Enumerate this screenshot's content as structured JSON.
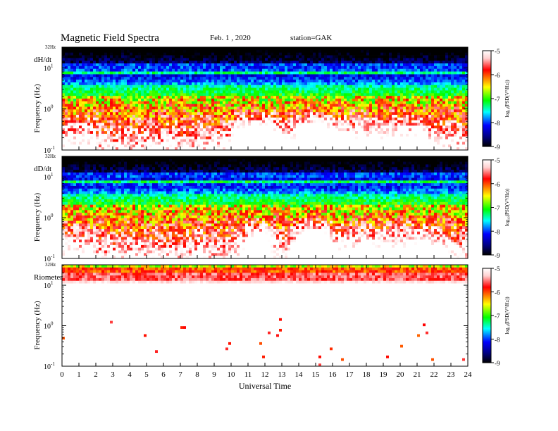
{
  "header": {
    "title": "Magnetic  Field  Spectra",
    "date": "Feb. 1  , 2020",
    "station": "station=GAK"
  },
  "x_axis": {
    "label": "Universal  Time",
    "ticks": [
      "0",
      "1",
      "2",
      "3",
      "4",
      "5",
      "6",
      "7",
      "8",
      "9",
      "10",
      "11",
      "12",
      "13",
      "14",
      "15",
      "16",
      "17",
      "18",
      "19",
      "20",
      "21",
      "22",
      "23",
      "24"
    ]
  },
  "colorbar": {
    "label": "log₁₀(PSD(V²/Hz))",
    "ticks": [
      "-5",
      "-6",
      "-7",
      "-8",
      "-9"
    ],
    "colors": [
      "#ffffff",
      "#ff0000",
      "#ffff00",
      "#00ff00",
      "#00ffff",
      "#0000ff",
      "#00007f",
      "#000000"
    ]
  },
  "panels": [
    {
      "id": "dhdt",
      "name": "dH/dt",
      "ylabel": "Frequency  (Hz)",
      "top_label": "32Hz",
      "yticks": [
        {
          "base": "10",
          "exp": "1"
        },
        {
          "base": "10",
          "exp": "0"
        },
        {
          "base": "10",
          "exp": "-1"
        }
      ]
    },
    {
      "id": "dddt",
      "name": "dD/dt",
      "ylabel": "Frequency  (Hz)",
      "top_label": "32Hz",
      "yticks": [
        {
          "base": "10",
          "exp": "1"
        },
        {
          "base": "10",
          "exp": "0"
        },
        {
          "base": "10",
          "exp": "-1"
        }
      ]
    },
    {
      "id": "riometer",
      "name": "Riometer",
      "ylabel": "Frequency  (Hz)",
      "top_label": "32Hz",
      "yticks": [
        {
          "base": "10",
          "exp": "1"
        },
        {
          "base": "10",
          "exp": "0"
        },
        {
          "base": "10",
          "exp": "-1"
        }
      ]
    }
  ],
  "chart_data": {
    "type": "heatmap",
    "title": "Magnetic  Field  Spectra",
    "xlabel": "Universal  Time",
    "ylabel": "Frequency  (Hz)",
    "x_range_hours": [
      0,
      24
    ],
    "y_range_hz": [
      0.1,
      32
    ],
    "y_scale": "log",
    "color_scale_range": [
      -9,
      -5
    ],
    "colorbar_label": "log₁₀(PSD(V²/Hz))",
    "series": [
      {
        "name": "dH/dt",
        "description": "broadband spectrogram; elevated low-frequency power (log PSD about -5) near 10-12 UT and 14-16 UT, narrow enhanced band near 8 Hz"
      },
      {
        "name": "dD/dt",
        "description": "broadband spectrogram; elevated low-frequency power near 11-12 UT and 14-15.5 UT, narrow enhanced band near 7 Hz"
      },
      {
        "name": "Riometer",
        "description": "high power (log PSD about -5 to -6) above about 15 Hz at all times; near-white (low noise) elsewhere with scattered red points"
      }
    ],
    "grid": false,
    "legend": "colorbar right of each panel"
  }
}
